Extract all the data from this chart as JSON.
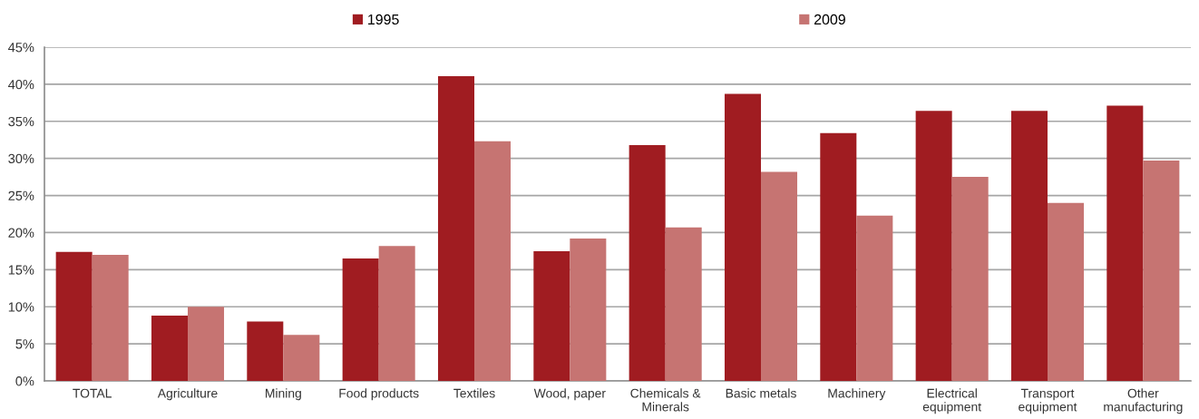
{
  "chart_data": {
    "type": "bar",
    "categories": [
      "TOTAL",
      "Agriculture",
      "Mining",
      "Food products",
      "Textiles",
      "Wood, paper",
      "Chemicals &\nMinerals",
      "Basic metals",
      "Machinery",
      "Electrical\nequipment",
      "Transport\nequipment",
      "Other\nmanufacturing"
    ],
    "series": [
      {
        "name": "1995",
        "color": "#a01c21",
        "values": [
          17.4,
          8.8,
          8.0,
          16.5,
          41.1,
          17.5,
          31.8,
          38.7,
          33.4,
          36.4,
          36.4,
          37.1
        ]
      },
      {
        "name": "2009",
        "color": "#c67472",
        "values": [
          17.0,
          10.0,
          6.2,
          18.2,
          32.3,
          19.2,
          20.7,
          28.2,
          22.3,
          27.5,
          24.0,
          29.7
        ]
      }
    ],
    "ylim": [
      0,
      45
    ],
    "yticks": [
      {
        "value": 0,
        "label": "0%"
      },
      {
        "value": 5,
        "label": "5%"
      },
      {
        "value": 10,
        "label": "10%"
      },
      {
        "value": 15,
        "label": "15%"
      },
      {
        "value": 20,
        "label": "20%"
      },
      {
        "value": 25,
        "label": "25%"
      },
      {
        "value": 30,
        "label": "30%"
      },
      {
        "value": 35,
        "label": "35%"
      },
      {
        "value": 40,
        "label": "40%"
      },
      {
        "value": 45,
        "label": "45%"
      }
    ],
    "grid": "y",
    "legend": "top"
  }
}
